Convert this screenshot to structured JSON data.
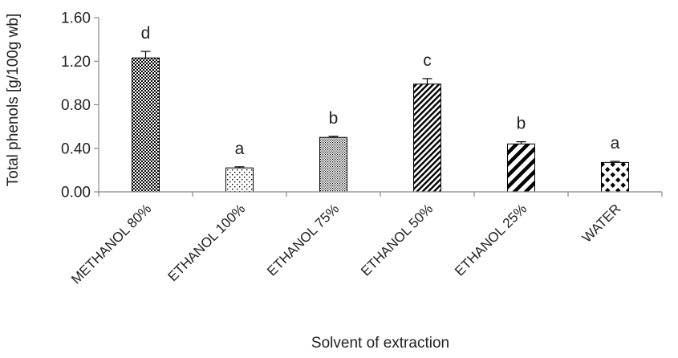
{
  "chart_data": {
    "type": "bar",
    "title": "",
    "xlabel": "Solvent of extraction",
    "ylabel": "Total phenols [g/100g wb]",
    "ylim": [
      0,
      1.6
    ],
    "yticks": [
      "0.00",
      "0.40",
      "0.80",
      "1.20",
      "1.60"
    ],
    "ytick_values": [
      0,
      0.4,
      0.8,
      1.2,
      1.6
    ],
    "grid": false,
    "legend": "none",
    "categories": [
      "METHANOL 80%",
      "ETHANOL 100%",
      "ETHANOL 75%",
      "ETHANOL 50%",
      "ETHANOL 25%",
      "WATER"
    ],
    "values": [
      1.23,
      0.22,
      0.5,
      0.99,
      0.44,
      0.27
    ],
    "errors": [
      0.06,
      0.01,
      0.01,
      0.05,
      0.02,
      0.01
    ],
    "significance_letters": [
      "d",
      "a",
      "b",
      "c",
      "b",
      "a"
    ],
    "bar_patterns": [
      "dense-checker",
      "sparse-dots",
      "fine-dots",
      "diagonal-fine",
      "diagonal-wide",
      "large-checker-dots"
    ],
    "colors": {
      "bar_ink": "#000000",
      "bar_background": "#ffffff",
      "axis": "#888888",
      "text": "#222222"
    }
  }
}
